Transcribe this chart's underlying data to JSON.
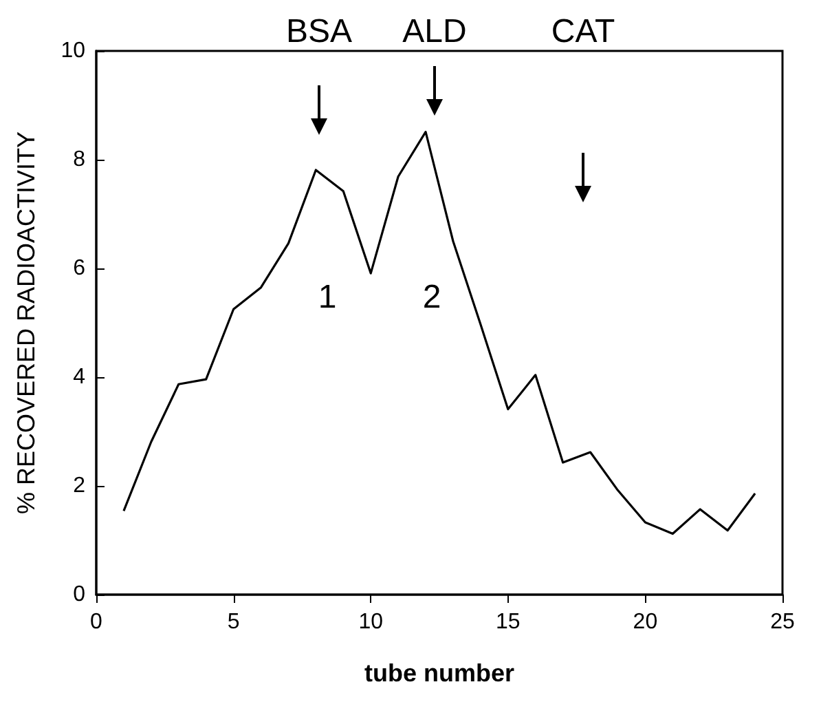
{
  "chart_data": {
    "type": "line",
    "xlabel": "tube number",
    "ylabel": "% RECOVERED RADIOACTIVITY",
    "x": [
      1,
      2,
      3,
      4,
      5,
      6,
      7,
      8,
      9,
      10,
      11,
      12,
      13,
      14,
      15,
      16,
      17,
      18,
      19,
      20,
      21,
      22,
      23,
      24
    ],
    "series": [
      {
        "color": "#000000",
        "values": [
          1.54,
          2.81,
          3.87,
          3.96,
          5.25,
          5.65,
          6.46,
          7.81,
          7.42,
          5.91,
          7.69,
          8.51,
          6.5,
          4.97,
          3.41,
          4.04,
          2.43,
          2.62,
          1.92,
          1.33,
          1.12,
          1.57,
          1.18,
          1.86
        ]
      }
    ],
    "xlim": [
      0,
      25
    ],
    "xticks": [
      0,
      5,
      10,
      15,
      20,
      25
    ],
    "ylim": [
      0,
      10
    ],
    "yticks": [
      0,
      2,
      4,
      6,
      8,
      10
    ],
    "grid": false,
    "marker": "none",
    "line_style": "solid",
    "annotations": [
      "BSA",
      "ALD",
      "CAT",
      "1",
      "2"
    ]
  }
}
